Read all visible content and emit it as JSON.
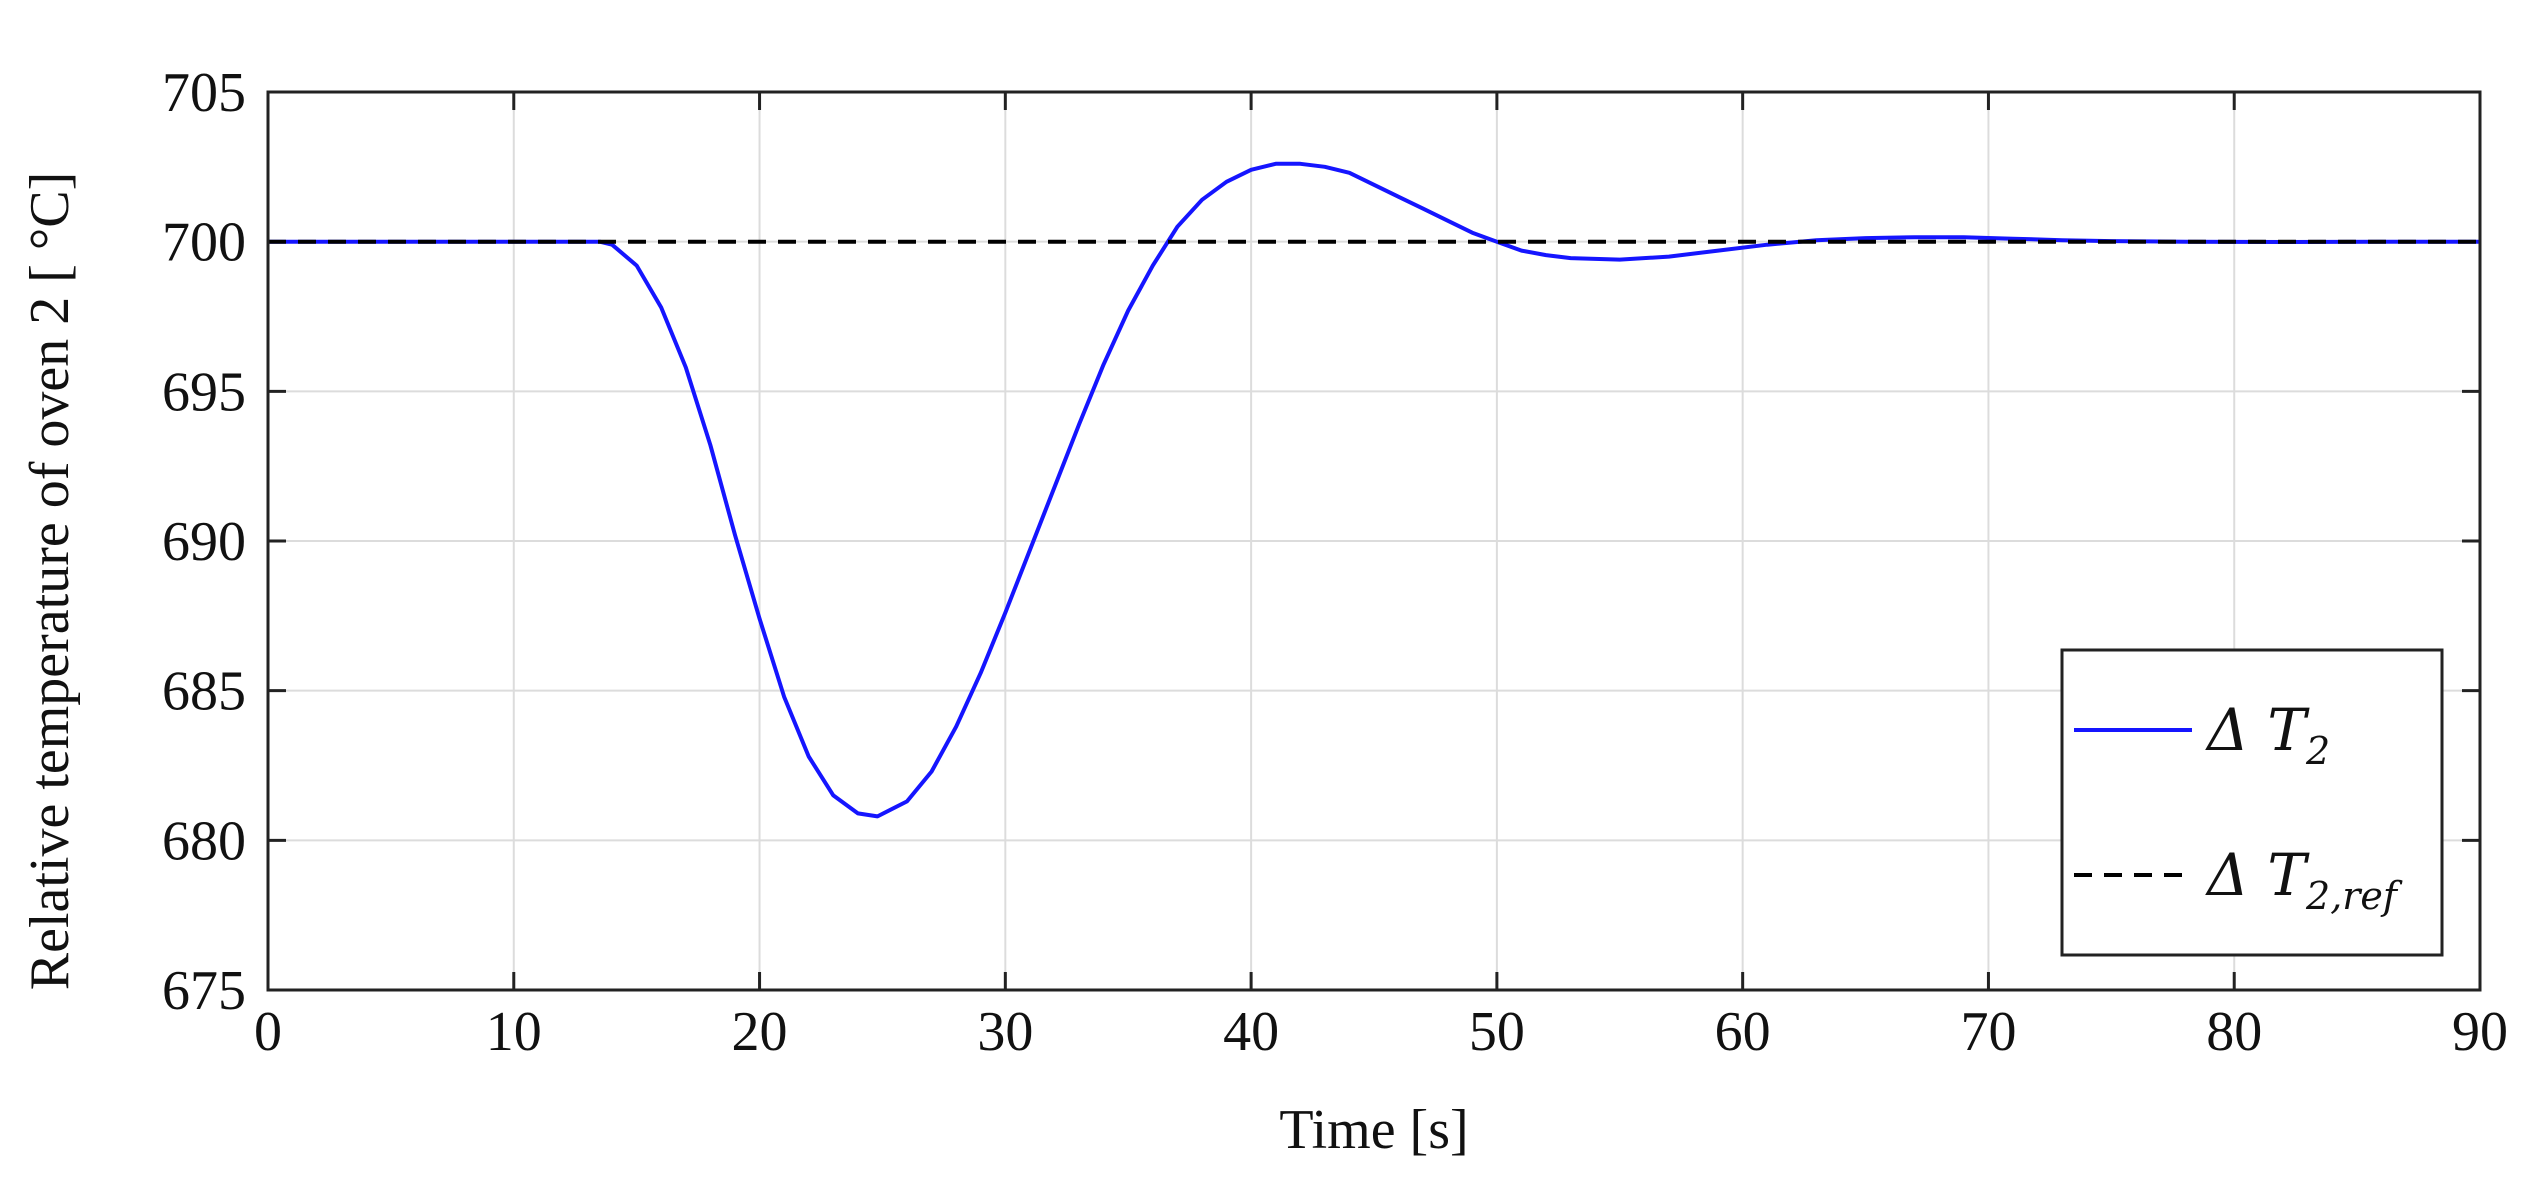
{
  "chart_data": {
    "type": "line",
    "xlabel": "Time [s]",
    "ylabel": "Relative temperature of oven 2 [ °C]",
    "xlim": [
      0,
      90
    ],
    "ylim": [
      675,
      705
    ],
    "xticks": [
      0,
      10,
      20,
      30,
      40,
      50,
      60,
      70,
      80,
      90
    ],
    "yticks": [
      675,
      680,
      685,
      690,
      695,
      700,
      705
    ],
    "xtick_labels": [
      "0",
      "10",
      "20",
      "30",
      "40",
      "50",
      "60",
      "70",
      "80",
      "90"
    ],
    "ytick_labels": [
      "675",
      "680",
      "685",
      "690",
      "695",
      "700",
      "705"
    ],
    "grid": true,
    "box": true,
    "legend_position": "bottom-right",
    "series": [
      {
        "name": "ΔT₂",
        "legend_main": "Δ T",
        "legend_sub": "2",
        "color": "#1515ff",
        "style": "solid",
        "x": [
          0,
          5,
          10,
          13.5,
          14,
          15,
          16,
          17,
          18,
          19,
          20,
          21,
          22,
          23,
          24,
          24.8,
          26,
          27,
          28,
          29,
          30,
          31,
          32,
          33,
          34,
          35,
          36,
          37,
          38,
          39,
          40,
          41,
          42,
          43,
          44,
          45,
          46,
          47,
          48,
          49,
          50,
          51,
          52,
          53,
          55,
          57,
          59,
          61,
          63,
          65,
          67,
          69,
          71,
          73,
          75,
          78,
          82,
          86,
          90
        ],
        "y": [
          700,
          700,
          700,
          700,
          699.9,
          699.2,
          697.8,
          695.8,
          693.2,
          690.2,
          687.4,
          684.8,
          682.8,
          681.5,
          680.9,
          680.8,
          681.3,
          682.3,
          683.8,
          685.6,
          687.6,
          689.7,
          691.8,
          693.9,
          695.9,
          697.7,
          699.2,
          700.5,
          701.4,
          702.0,
          702.4,
          702.6,
          702.6,
          702.5,
          702.3,
          701.9,
          701.5,
          701.1,
          700.7,
          700.3,
          700.0,
          699.7,
          699.55,
          699.45,
          699.4,
          699.5,
          699.7,
          699.9,
          700.05,
          700.12,
          700.15,
          700.15,
          700.1,
          700.05,
          700.02,
          700.0,
          699.99,
          700.0,
          700.0
        ]
      },
      {
        "name": "ΔT₂,ref",
        "legend_main": "Δ T",
        "legend_sub": "2,ref",
        "color": "#000000",
        "style": "dashed",
        "x": [
          0,
          90
        ],
        "y": [
          700,
          700
        ]
      }
    ]
  }
}
